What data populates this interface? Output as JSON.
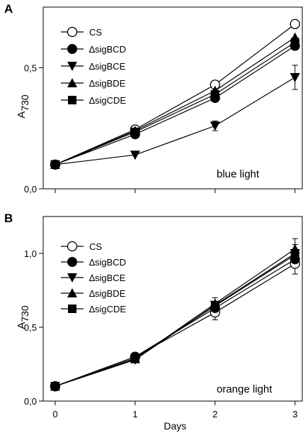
{
  "chart_data": [
    {
      "panel": "A",
      "type": "line",
      "annotation": "blue light",
      "xlabel": "",
      "ylabel": "A",
      "ylabel_sub": "730",
      "x": [
        0,
        1,
        2,
        3
      ],
      "xlim": [
        -0.15,
        3.1
      ],
      "ylim": [
        0.0,
        0.75
      ],
      "yticks": [
        0.0,
        0.5
      ],
      "ytick_labels": [
        "0,0",
        "0,5"
      ],
      "xtick_labels": [],
      "series": [
        {
          "name": "CS",
          "marker": "circle-open",
          "values": [
            0.1,
            0.245,
            0.43,
            0.68
          ],
          "err": [
            0,
            0,
            0,
            0
          ]
        },
        {
          "name": "∆sigBCD",
          "marker": "circle-filled",
          "values": [
            0.1,
            0.225,
            0.375,
            0.59
          ],
          "err": [
            0,
            0,
            0,
            0
          ]
        },
        {
          "name": "∆sigBCE",
          "marker": "triangle-down",
          "values": [
            0.1,
            0.14,
            0.26,
            0.46
          ],
          "err": [
            0,
            0,
            0.02,
            0.05
          ]
        },
        {
          "name": "∆sigBDE",
          "marker": "triangle-up",
          "values": [
            0.1,
            0.24,
            0.405,
            0.625
          ],
          "err": [
            0,
            0,
            0,
            0
          ]
        },
        {
          "name": "∆sigCDE",
          "marker": "square",
          "values": [
            0.1,
            0.235,
            0.39,
            0.605
          ],
          "err": [
            0,
            0,
            0,
            0
          ]
        }
      ]
    },
    {
      "panel": "B",
      "type": "line",
      "annotation": "orange light",
      "xlabel": "Days",
      "ylabel": "A",
      "ylabel_sub": "730",
      "x": [
        0,
        1,
        2,
        3
      ],
      "xlim": [
        -0.15,
        3.1
      ],
      "ylim": [
        0.0,
        1.25
      ],
      "yticks": [
        0.0,
        0.5,
        1.0
      ],
      "ytick_labels": [
        "0,0",
        "0,5",
        "1,0"
      ],
      "xtick_labels": [
        "0",
        "1",
        "2",
        "3"
      ],
      "series": [
        {
          "name": "CS",
          "marker": "circle-open",
          "values": [
            0.1,
            0.3,
            0.6,
            0.93
          ],
          "err": [
            0,
            0,
            0.05,
            0.07
          ]
        },
        {
          "name": "∆sigBCD",
          "marker": "circle-filled",
          "values": [
            0.1,
            0.3,
            0.63,
            0.96
          ],
          "err": [
            0,
            0,
            0,
            0
          ]
        },
        {
          "name": "∆sigBCE",
          "marker": "triangle-down",
          "values": [
            0.1,
            0.28,
            0.65,
            1.0
          ],
          "err": [
            0,
            0,
            0,
            0.06
          ]
        },
        {
          "name": "∆sigBDE",
          "marker": "triangle-up",
          "values": [
            0.1,
            0.285,
            0.66,
            1.03
          ],
          "err": [
            0,
            0,
            0.04,
            0.07
          ]
        },
        {
          "name": "∆sigCDE",
          "marker": "square",
          "values": [
            0.1,
            0.29,
            0.645,
            0.99
          ],
          "err": [
            0,
            0,
            0,
            0
          ]
        }
      ]
    }
  ]
}
